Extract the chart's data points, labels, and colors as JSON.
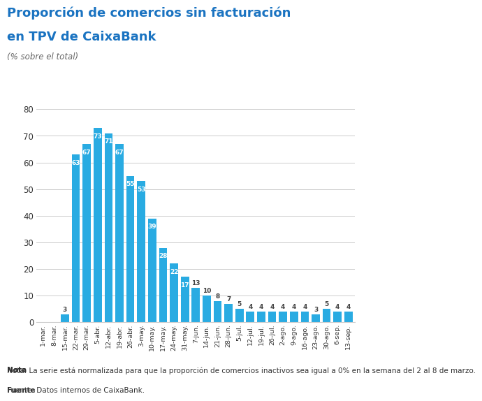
{
  "title_line1": "Proporción de comercios sin facturación",
  "title_line2": "en TPV de CaixaBank",
  "subtitle": "(% sobre el total)",
  "categories": [
    "1-mar.",
    "8-mar.",
    "15-mar.",
    "22-mar.",
    "29-mar.",
    "5-abr.",
    "12-abr.",
    "19-abr.",
    "26-abr.",
    "3-may.",
    "10-may.",
    "17-may.",
    "24-may.",
    "31-may.",
    "7-jun.",
    "14-jun.",
    "21-jun.",
    "28-jun.",
    "5-jul.",
    "12-jul.",
    "19-jul.",
    "26-jul.",
    "2-ago.",
    "9-ago.",
    "16-ago.",
    "23-ago.",
    "30-ago.",
    "6-sep.",
    "13-sep."
  ],
  "values": [
    0,
    0,
    3,
    63,
    67,
    73,
    71,
    67,
    55,
    53,
    39,
    28,
    22,
    17,
    13,
    10,
    8,
    7,
    5,
    4,
    4,
    4,
    4,
    4,
    4,
    3,
    5,
    4,
    4
  ],
  "bar_color": "#29abe2",
  "ylim": [
    0,
    80
  ],
  "yticks": [
    0,
    10,
    20,
    30,
    40,
    50,
    60,
    70,
    80
  ],
  "note_bold": "Nota",
  "note_rest": ": La serie está normalizada para que la proporción de comercios inactivos sea igual a 0% en la semana del 2 al 8 de marzo.",
  "source_bold": "Fuente",
  "source_rest": ": Datos internos de CaixaBank.",
  "title_color": "#1a73c1",
  "subtitle_color": "#666666",
  "bar_label_color_inside": "#ffffff",
  "bar_label_color_outside": "#444444",
  "bar_label_threshold": 15,
  "background_color": "#ffffff"
}
